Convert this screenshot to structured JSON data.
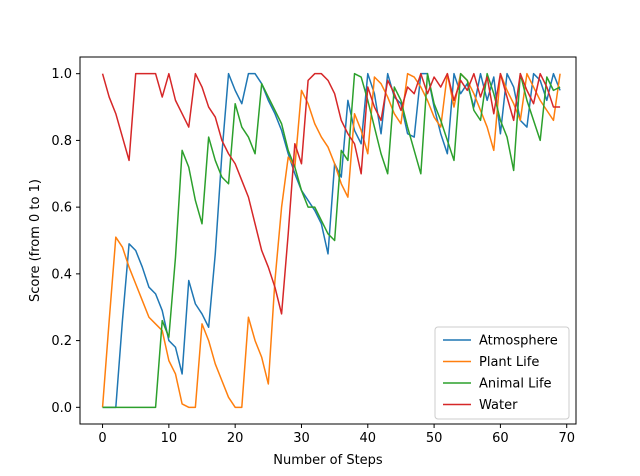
{
  "chart_data": {
    "type": "line",
    "title": "",
    "xlabel": "Number of Steps",
    "ylabel": "Score (from 0 to 1)",
    "xlim": [
      -3.4,
      71.4
    ],
    "ylim": [
      -0.05,
      1.05
    ],
    "x_ticks": [
      0,
      10,
      20,
      30,
      40,
      50,
      60,
      70
    ],
    "x_tick_labels": [
      "0",
      "10",
      "20",
      "30",
      "40",
      "50",
      "60",
      "70"
    ],
    "y_ticks": [
      0.0,
      0.2,
      0.4,
      0.6,
      0.8,
      1.0
    ],
    "y_tick_labels": [
      "0.0",
      "0.2",
      "0.4",
      "0.6",
      "0.8",
      "1.0"
    ],
    "grid": false,
    "legend_position": "lower-right",
    "series": [
      {
        "name": "Atmosphere",
        "color": "#1f77b4",
        "values": [
          0,
          0,
          0,
          0.26,
          0.49,
          0.47,
          0.42,
          0.36,
          0.34,
          0.29,
          0.2,
          0.18,
          0.1,
          0.38,
          0.31,
          0.28,
          0.24,
          0.46,
          0.76,
          1.0,
          0.95,
          0.91,
          1.0,
          1.0,
          0.97,
          0.92,
          0.88,
          0.83,
          0.76,
          0.7,
          0.65,
          0.62,
          0.59,
          0.55,
          0.46,
          0.73,
          0.69,
          0.92,
          0.83,
          0.79,
          1.0,
          0.94,
          0.82,
          1.0,
          0.93,
          0.91,
          0.82,
          0.81,
          1.0,
          1.0,
          0.9,
          0.82,
          0.76,
          1.0,
          0.94,
          0.97,
          0.9,
          1.0,
          0.92,
          0.99,
          0.82,
          1.0,
          0.96,
          0.86,
          0.84,
          1.0,
          0.98,
          0.92,
          1.0,
          0.95
        ]
      },
      {
        "name": "Plant Life",
        "color": "#ff7f0e",
        "values": [
          0,
          0.26,
          0.51,
          0.48,
          0.42,
          0.37,
          0.32,
          0.27,
          0.25,
          0.23,
          0.14,
          0.1,
          0.01,
          0,
          0,
          0.25,
          0.2,
          0.13,
          0.08,
          0.03,
          0,
          0,
          0.27,
          0.2,
          0.15,
          0.07,
          0.38,
          0.6,
          0.75,
          0.72,
          0.95,
          0.91,
          0.85,
          0.81,
          0.78,
          0.73,
          0.67,
          0.63,
          0.88,
          0.83,
          0.76,
          0.99,
          0.97,
          0.93,
          0.88,
          0.85,
          1.0,
          0.99,
          0.96,
          0.92,
          0.87,
          0.84,
          1.0,
          0.9,
          1.0,
          0.98,
          0.94,
          0.89,
          0.84,
          0.77,
          1.0,
          0.95,
          0.91,
          0.86,
          1.0,
          0.96,
          0.92,
          0.89,
          0.86,
          1.0
        ]
      },
      {
        "name": "Animal Life",
        "color": "#2ca02c",
        "values": [
          0,
          0,
          0,
          0,
          0,
          0,
          0,
          0,
          0,
          0.26,
          0.21,
          0.45,
          0.77,
          0.72,
          0.62,
          0.55,
          0.81,
          0.74,
          0.69,
          0.67,
          0.91,
          0.84,
          0.81,
          0.76,
          0.97,
          0.93,
          0.89,
          0.85,
          0.77,
          0.72,
          0.65,
          0.6,
          0.6,
          0.56,
          0.52,
          0.5,
          0.77,
          0.74,
          1.0,
          0.99,
          0.92,
          0.84,
          0.76,
          0.7,
          0.96,
          0.92,
          0.84,
          0.77,
          0.7,
          1.0,
          0.91,
          0.86,
          0.8,
          0.74,
          1.0,
          0.98,
          0.89,
          0.86,
          1.0,
          0.94,
          0.86,
          0.81,
          0.71,
          1.0,
          0.92,
          0.86,
          0.8,
          0.99,
          0.95,
          0.96
        ]
      },
      {
        "name": "Water",
        "color": "#d62728",
        "values": [
          1.0,
          0.93,
          0.88,
          0.81,
          0.74,
          1.0,
          1.0,
          1.0,
          1.0,
          0.93,
          1.0,
          0.92,
          0.88,
          0.84,
          1.0,
          0.96,
          0.9,
          0.87,
          0.8,
          0.76,
          0.73,
          0.68,
          0.63,
          0.55,
          0.47,
          0.42,
          0.36,
          0.28,
          0.52,
          0.79,
          0.73,
          0.98,
          1.0,
          1.0,
          0.98,
          0.94,
          0.86,
          0.82,
          0.79,
          0.7,
          0.96,
          0.9,
          0.86,
          0.98,
          0.94,
          0.89,
          0.96,
          0.94,
          1.0,
          0.94,
          0.99,
          0.96,
          1.0,
          0.92,
          0.98,
          0.95,
          1.0,
          0.93,
          0.99,
          0.88,
          1.0,
          0.93,
          0.86,
          1.0,
          0.95,
          0.91,
          1.0,
          0.96,
          0.9,
          0.9
        ]
      }
    ]
  }
}
